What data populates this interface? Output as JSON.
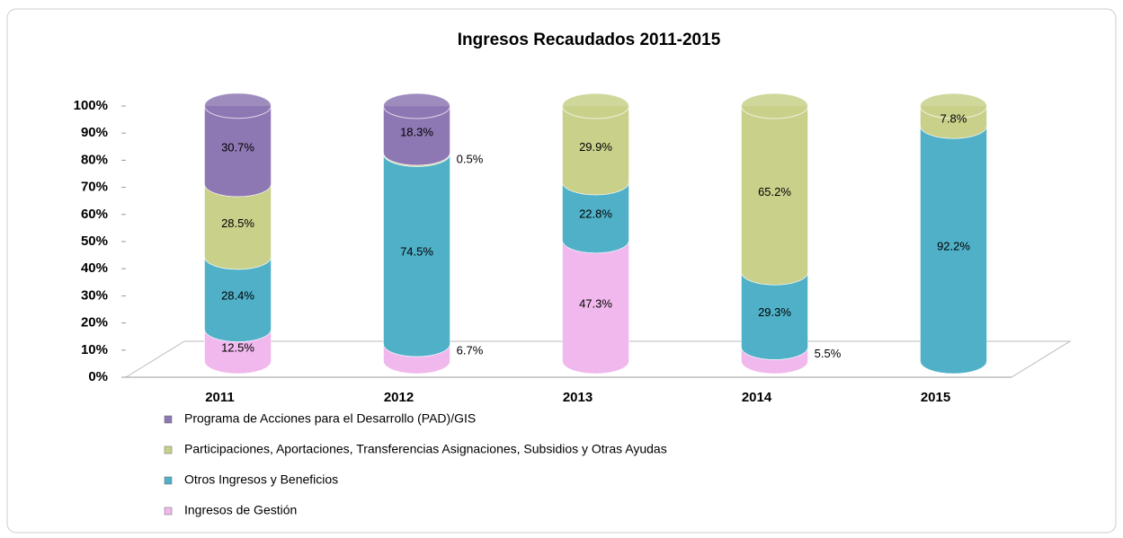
{
  "chart_data": {
    "type": "bar",
    "stacked": true,
    "title": "Ingresos Recaudados 2011-2015",
    "categories": [
      "2011",
      "2012",
      "2013",
      "2014",
      "2015"
    ],
    "series": [
      {
        "name": "Ingresos de Gestión",
        "color": "#f0b8ec",
        "values": [
          12.5,
          6.7,
          47.3,
          5.5,
          null
        ],
        "value_labels": [
          "12.5%",
          "6.7%",
          "47.3%",
          "5.5%",
          null
        ]
      },
      {
        "name": "Otros Ingresos y Beneficios",
        "color": "#4fb0c8",
        "values": [
          28.4,
          74.5,
          22.8,
          29.3,
          92.2
        ],
        "value_labels": [
          "28.4%",
          "74.5%",
          "22.8%",
          "29.3%",
          "92.2%"
        ]
      },
      {
        "name": "Participaciones, Aportaciones, Transferencias Asignaciones, Subsidios y Otras Ayudas",
        "color": "#c8d08a",
        "values": [
          28.5,
          0.5,
          29.9,
          65.2,
          7.8
        ],
        "value_labels": [
          "28.5%",
          "0.5%",
          "29.9%",
          "65.2%",
          "7.8%"
        ]
      },
      {
        "name": "Programa de Acciones para el Desarrollo (PAD)/GIS",
        "color": "#8e78b4",
        "values": [
          30.7,
          18.3,
          null,
          null,
          null
        ],
        "value_labels": [
          "30.7%",
          "18.3%",
          null,
          null,
          null
        ]
      }
    ],
    "ylim": [
      0,
      100
    ],
    "yticks": [
      {
        "value": 0,
        "label": "0%"
      },
      {
        "value": 10,
        "label": "10%"
      },
      {
        "value": 20,
        "label": "20%"
      },
      {
        "value": 30,
        "label": "30%"
      },
      {
        "value": 40,
        "label": "40%"
      },
      {
        "value": 50,
        "label": "50%"
      },
      {
        "value": 60,
        "label": "60%"
      },
      {
        "value": 70,
        "label": "70%"
      },
      {
        "value": 80,
        "label": "80%"
      },
      {
        "value": 90,
        "label": "90%"
      },
      {
        "value": 100,
        "label": "100%"
      }
    ]
  }
}
